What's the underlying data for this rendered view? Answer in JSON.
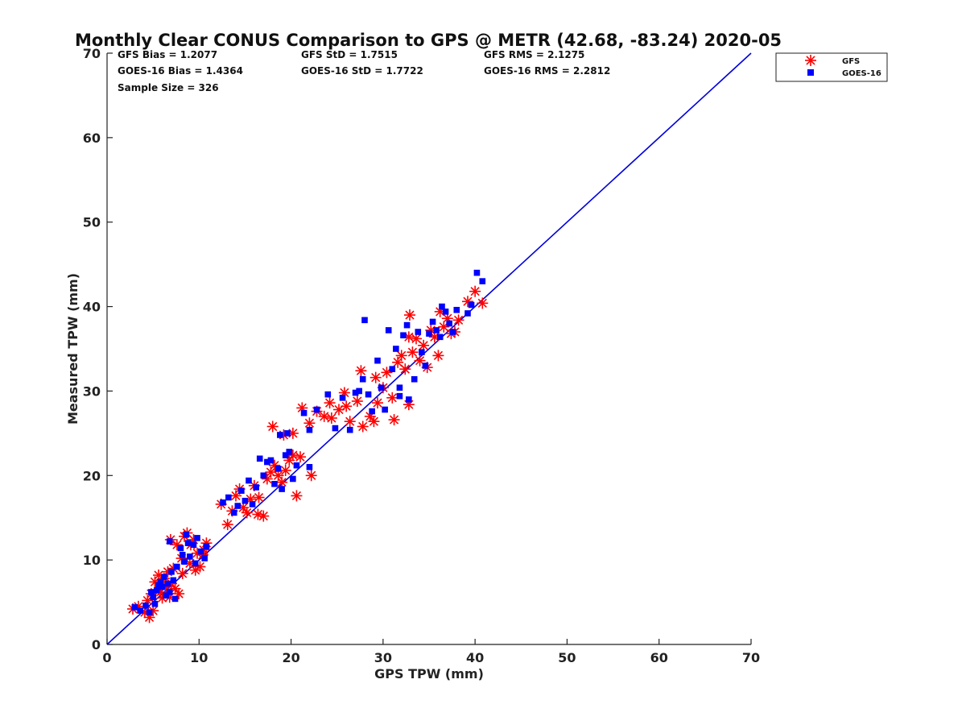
{
  "chart_data": {
    "type": "scatter",
    "title": "Monthly Clear CONUS Comparison to GPS @ METR (42.68, -83.24) 2020-05",
    "xlabel": "GPS TPW (mm)",
    "ylabel": "Measured TPW (mm)",
    "xlim": [
      0,
      70
    ],
    "ylim": [
      0,
      70
    ],
    "xticks": [
      "0",
      "10",
      "20",
      "30",
      "40",
      "50",
      "60",
      "70"
    ],
    "yticks": [
      "0",
      "10",
      "20",
      "30",
      "40",
      "50",
      "60",
      "70"
    ],
    "grid": false,
    "legend_position": "outside-top-right",
    "stats": {
      "gfs_bias": "GFS Bias = 1.2077",
      "gfs_std": "GFS StD = 1.7515",
      "gfs_rms": "GFS RMS = 2.1275",
      "goes_bias": "GOES-16 Bias = 1.4364",
      "goes_std": "GOES-16 StD = 1.7722",
      "goes_rms": "GOES-16 RMS = 2.2812",
      "sample_size": "Sample Size = 326"
    },
    "reference_line": {
      "x": [
        0,
        70
      ],
      "y": [
        0,
        70
      ],
      "color": "#0000dd"
    },
    "series": [
      {
        "name": "GFS",
        "marker": "asterisk",
        "color": "#ff0000",
        "points": [
          [
            2.8,
            4.2
          ],
          [
            3.4,
            4.5
          ],
          [
            4.1,
            3.8
          ],
          [
            4.6,
            3.2
          ],
          [
            5.0,
            4.0
          ],
          [
            4.4,
            5.2
          ],
          [
            4.8,
            6.0
          ],
          [
            5.2,
            7.4
          ],
          [
            5.6,
            8.2
          ],
          [
            6.0,
            5.5
          ],
          [
            6.4,
            6.8
          ],
          [
            6.6,
            8.6
          ],
          [
            7.0,
            7.2
          ],
          [
            6.8,
            5.6
          ],
          [
            7.4,
            6.6
          ],
          [
            7.2,
            9.0
          ],
          [
            6.9,
            12.4
          ],
          [
            7.6,
            11.8
          ],
          [
            8.1,
            10.2
          ],
          [
            8.4,
            12.8
          ],
          [
            8.7,
            13.2
          ],
          [
            9.1,
            11.8
          ],
          [
            9.4,
            12.4
          ],
          [
            9.8,
            10.8
          ],
          [
            10.1,
            9.2
          ],
          [
            9.6,
            8.8
          ],
          [
            10.4,
            10.6
          ],
          [
            10.8,
            12.0
          ],
          [
            10.5,
            11.2
          ],
          [
            9.0,
            9.6
          ],
          [
            8.2,
            8.4
          ],
          [
            7.8,
            6.0
          ],
          [
            5.8,
            6.2
          ],
          [
            6.2,
            7.8
          ],
          [
            12.4,
            16.6
          ],
          [
            13.1,
            14.2
          ],
          [
            13.6,
            15.8
          ],
          [
            14.0,
            17.6
          ],
          [
            14.4,
            18.4
          ],
          [
            14.8,
            16.2
          ],
          [
            15.2,
            15.6
          ],
          [
            15.6,
            17.2
          ],
          [
            16.0,
            18.8
          ],
          [
            16.5,
            17.4
          ],
          [
            17.0,
            15.2
          ],
          [
            17.4,
            19.6
          ],
          [
            17.8,
            20.4
          ],
          [
            18.2,
            21.2
          ],
          [
            18.6,
            20.0
          ],
          [
            19.0,
            19.2
          ],
          [
            19.4,
            20.6
          ],
          [
            19.8,
            21.8
          ],
          [
            20.2,
            22.4
          ],
          [
            20.6,
            17.6
          ],
          [
            21.0,
            22.2
          ],
          [
            22.2,
            20.0
          ],
          [
            18.0,
            25.8
          ],
          [
            19.2,
            24.8
          ],
          [
            20.2,
            25.0
          ],
          [
            16.4,
            15.4
          ],
          [
            21.2,
            28.0
          ],
          [
            22.0,
            26.2
          ],
          [
            22.8,
            27.6
          ],
          [
            23.6,
            27.0
          ],
          [
            24.4,
            26.8
          ],
          [
            25.2,
            27.8
          ],
          [
            25.8,
            29.8
          ],
          [
            26.4,
            26.4
          ],
          [
            27.2,
            28.8
          ],
          [
            27.6,
            32.4
          ],
          [
            27.8,
            25.8
          ],
          [
            28.6,
            27.0
          ],
          [
            29.0,
            26.4
          ],
          [
            29.4,
            28.6
          ],
          [
            30.0,
            30.4
          ],
          [
            30.4,
            32.2
          ],
          [
            31.0,
            29.2
          ],
          [
            31.2,
            26.6
          ],
          [
            31.6,
            33.4
          ],
          [
            32.0,
            34.2
          ],
          [
            32.4,
            32.6
          ],
          [
            32.8,
            36.4
          ],
          [
            32.9,
            39.0
          ],
          [
            33.2,
            34.6
          ],
          [
            33.6,
            36.2
          ],
          [
            34.0,
            33.6
          ],
          [
            34.4,
            35.4
          ],
          [
            34.8,
            32.8
          ],
          [
            35.2,
            37.2
          ],
          [
            35.6,
            36.4
          ],
          [
            36.0,
            34.2
          ],
          [
            36.2,
            39.4
          ],
          [
            36.6,
            37.6
          ],
          [
            37.0,
            38.6
          ],
          [
            37.4,
            36.8
          ],
          [
            37.8,
            37.0
          ],
          [
            38.2,
            38.4
          ],
          [
            39.2,
            40.6
          ],
          [
            40.0,
            41.8
          ],
          [
            40.8,
            40.4
          ],
          [
            32.8,
            28.4
          ],
          [
            29.2,
            31.6
          ],
          [
            26.0,
            28.2
          ],
          [
            24.2,
            28.6
          ]
        ]
      },
      {
        "name": "GOES-16",
        "marker": "square",
        "color": "#0000ff",
        "points": [
          [
            3.0,
            4.4
          ],
          [
            3.6,
            4.0
          ],
          [
            4.2,
            4.6
          ],
          [
            4.6,
            3.8
          ],
          [
            5.0,
            5.6
          ],
          [
            5.2,
            4.8
          ],
          [
            5.4,
            6.4
          ],
          [
            5.8,
            7.4
          ],
          [
            6.0,
            6.8
          ],
          [
            6.2,
            8.0
          ],
          [
            6.6,
            7.2
          ],
          [
            6.8,
            6.2
          ],
          [
            7.0,
            8.6
          ],
          [
            7.2,
            7.6
          ],
          [
            6.8,
            12.2
          ],
          [
            7.6,
            9.2
          ],
          [
            8.0,
            11.4
          ],
          [
            8.2,
            10.6
          ],
          [
            8.6,
            13.0
          ],
          [
            8.8,
            12.0
          ],
          [
            9.0,
            10.4
          ],
          [
            9.4,
            11.8
          ],
          [
            9.8,
            12.6
          ],
          [
            10.2,
            11.0
          ],
          [
            10.6,
            10.2
          ],
          [
            10.8,
            11.6
          ],
          [
            9.6,
            9.6
          ],
          [
            8.4,
            9.8
          ],
          [
            5.6,
            7.0
          ],
          [
            6.4,
            5.8
          ],
          [
            7.4,
            5.4
          ],
          [
            4.8,
            6.2
          ],
          [
            12.6,
            16.8
          ],
          [
            13.2,
            17.4
          ],
          [
            13.8,
            15.6
          ],
          [
            14.2,
            16.4
          ],
          [
            14.6,
            18.2
          ],
          [
            15.0,
            17.0
          ],
          [
            15.4,
            19.4
          ],
          [
            15.8,
            16.6
          ],
          [
            16.2,
            18.6
          ],
          [
            16.6,
            22.0
          ],
          [
            17.0,
            20.0
          ],
          [
            17.4,
            21.6
          ],
          [
            17.8,
            21.8
          ],
          [
            18.2,
            19.0
          ],
          [
            18.6,
            20.8
          ],
          [
            19.0,
            18.4
          ],
          [
            19.4,
            22.4
          ],
          [
            19.8,
            22.8
          ],
          [
            20.2,
            19.6
          ],
          [
            20.6,
            21.2
          ],
          [
            22.0,
            21.0
          ],
          [
            18.8,
            24.8
          ],
          [
            19.6,
            25.0
          ],
          [
            21.4,
            27.4
          ],
          [
            22.0,
            25.4
          ],
          [
            22.8,
            27.8
          ],
          [
            24.0,
            29.6
          ],
          [
            24.8,
            25.6
          ],
          [
            25.6,
            29.2
          ],
          [
            26.4,
            25.4
          ],
          [
            27.0,
            29.8
          ],
          [
            27.8,
            31.4
          ],
          [
            28.0,
            38.4
          ],
          [
            28.4,
            29.6
          ],
          [
            28.8,
            27.6
          ],
          [
            29.4,
            33.6
          ],
          [
            29.8,
            30.4
          ],
          [
            30.2,
            27.8
          ],
          [
            30.6,
            37.2
          ],
          [
            31.0,
            32.6
          ],
          [
            31.4,
            35.0
          ],
          [
            31.8,
            30.4
          ],
          [
            32.2,
            36.6
          ],
          [
            32.6,
            37.8
          ],
          [
            32.8,
            29.0
          ],
          [
            33.4,
            31.4
          ],
          [
            33.8,
            37.0
          ],
          [
            34.2,
            34.6
          ],
          [
            34.6,
            33.0
          ],
          [
            35.0,
            36.8
          ],
          [
            35.4,
            38.2
          ],
          [
            35.8,
            37.2
          ],
          [
            36.2,
            36.4
          ],
          [
            36.4,
            40.0
          ],
          [
            36.8,
            39.4
          ],
          [
            37.2,
            38.0
          ],
          [
            37.6,
            37.0
          ],
          [
            38.0,
            39.6
          ],
          [
            39.2,
            39.2
          ],
          [
            39.6,
            40.2
          ],
          [
            40.2,
            44.0
          ],
          [
            40.8,
            43.0
          ],
          [
            31.8,
            29.4
          ],
          [
            27.4,
            30.0
          ]
        ]
      }
    ]
  }
}
